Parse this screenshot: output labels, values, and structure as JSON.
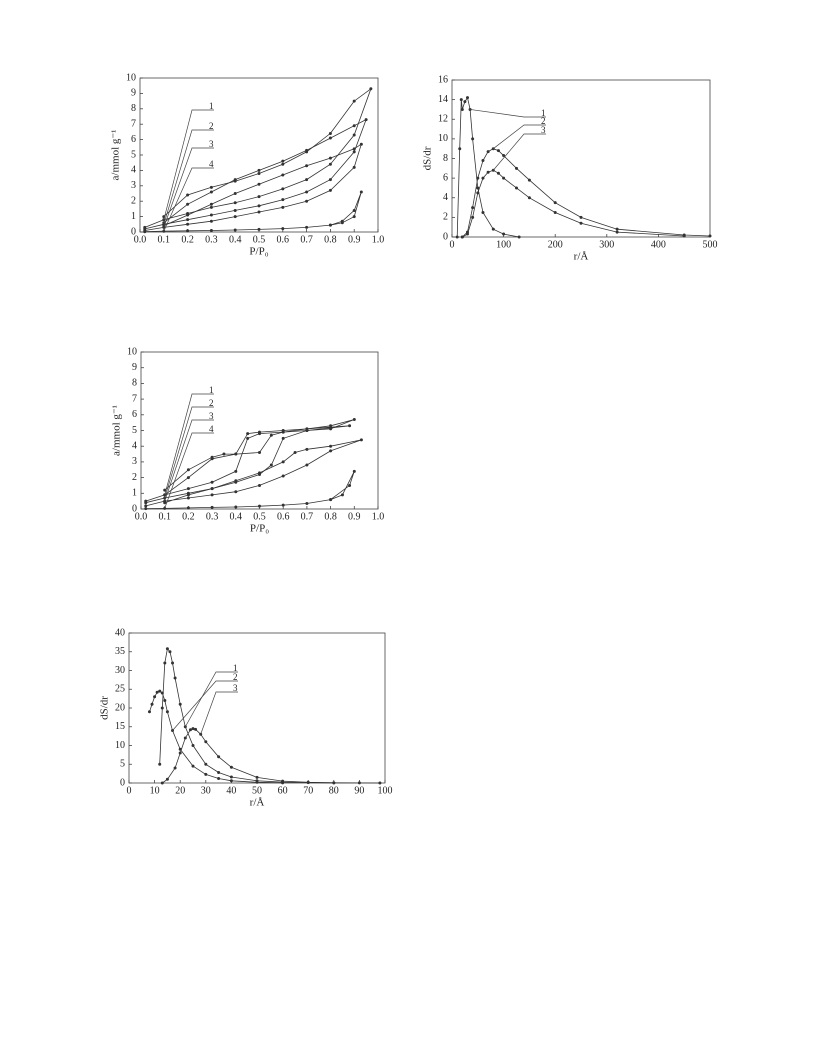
{
  "chart_data": [
    {
      "type": "line",
      "xlabel": "P/P₀",
      "ylabel": "a/mmol g⁻¹",
      "xlim": [
        0,
        1
      ],
      "ylim": [
        0,
        10
      ],
      "xticks": [
        {
          "value": 0,
          "label": "0.0"
        },
        0.1,
        0.2,
        0.3,
        0.4,
        0.5,
        0.6,
        0.7,
        0.8,
        0.9,
        {
          "value": 1,
          "label": "1.0"
        }
      ],
      "yticks": [
        0,
        1,
        2,
        3,
        4,
        5,
        6,
        7,
        8,
        9,
        10
      ],
      "series": [
        {
          "name": "1",
          "color": "#333333",
          "x": [
            0.02,
            0.1,
            0.2,
            0.3,
            0.4,
            0.5,
            0.6,
            0.7,
            0.8,
            0.9,
            0.97,
            0.9,
            0.8,
            0.7,
            0.6,
            0.5,
            0.4,
            0.3,
            0.2,
            0.1
          ],
          "values": [
            0.3,
            0.8,
            1.2,
            1.6,
            1.9,
            2.3,
            2.8,
            3.4,
            4.4,
            6.3,
            9.3,
            8.5,
            6.4,
            5.2,
            4.4,
            3.8,
            3.3,
            2.9,
            2.4,
            1.0
          ]
        },
        {
          "name": "2",
          "color": "#333333",
          "x": [
            0.02,
            0.1,
            0.2,
            0.3,
            0.4,
            0.5,
            0.6,
            0.7,
            0.8,
            0.9,
            0.95,
            0.9,
            0.8,
            0.7,
            0.6,
            0.5,
            0.4,
            0.3,
            0.2,
            0.1
          ],
          "values": [
            0.2,
            0.5,
            0.8,
            1.1,
            1.4,
            1.7,
            2.1,
            2.6,
            3.4,
            5.2,
            7.3,
            6.9,
            6.1,
            5.3,
            4.6,
            4.0,
            3.4,
            2.6,
            1.8,
            0.6
          ]
        },
        {
          "name": "3",
          "color": "#333333",
          "x": [
            0.02,
            0.1,
            0.2,
            0.3,
            0.4,
            0.5,
            0.6,
            0.7,
            0.8,
            0.9,
            0.93,
            0.9,
            0.8,
            0.7,
            0.6,
            0.5,
            0.4,
            0.3,
            0.2,
            0.1
          ],
          "values": [
            0.1,
            0.3,
            0.5,
            0.7,
            1.0,
            1.3,
            1.6,
            2.0,
            2.7,
            4.2,
            5.7,
            5.4,
            4.8,
            4.3,
            3.7,
            3.1,
            2.5,
            1.8,
            1.1,
            0.4
          ]
        },
        {
          "name": "4",
          "color": "#333333",
          "x": [
            0.02,
            0.1,
            0.2,
            0.3,
            0.4,
            0.5,
            0.6,
            0.7,
            0.8,
            0.85,
            0.9,
            0.93,
            0.9,
            0.85,
            0.8
          ],
          "values": [
            0.02,
            0.05,
            0.08,
            0.1,
            0.13,
            0.17,
            0.22,
            0.3,
            0.45,
            0.7,
            1.4,
            2.6,
            1.0,
            0.6,
            0.45
          ]
        }
      ]
    },
    {
      "type": "line",
      "xlabel": "r/Å",
      "ylabel": "dS/dr",
      "xlim": [
        0,
        500
      ],
      "ylim": [
        0,
        16
      ],
      "xticks": [
        0,
        100,
        200,
        300,
        400,
        500
      ],
      "yticks": [
        0,
        2,
        4,
        6,
        8,
        10,
        12,
        14,
        16
      ],
      "series": [
        {
          "name": "1",
          "color": "#333333",
          "x": [
            10,
            15,
            18,
            20,
            25,
            30,
            35,
            40,
            50,
            60,
            80,
            100,
            130
          ],
          "values": [
            0,
            9,
            14,
            13,
            13.8,
            14.2,
            13,
            10,
            5,
            2.5,
            0.8,
            0.3,
            0
          ]
        },
        {
          "name": "2",
          "color": "#333333",
          "x": [
            20,
            30,
            40,
            50,
            60,
            70,
            80,
            90,
            100,
            125,
            150,
            200,
            250,
            320,
            450,
            500
          ],
          "values": [
            0,
            0.5,
            3,
            6,
            7.8,
            8.7,
            9.0,
            8.8,
            8.3,
            7,
            5.8,
            3.5,
            2,
            0.8,
            0.2,
            0.1
          ]
        },
        {
          "name": "3",
          "color": "#333333",
          "x": [
            20,
            30,
            40,
            50,
            60,
            70,
            80,
            90,
            100,
            125,
            150,
            200,
            250,
            320,
            450
          ],
          "values": [
            0,
            0.3,
            2,
            4.5,
            6,
            6.6,
            6.8,
            6.5,
            6,
            5,
            4,
            2.5,
            1.4,
            0.5,
            0.1
          ]
        }
      ]
    },
    {
      "type": "line",
      "xlabel": "P/P₀",
      "ylabel": "a/mmol g⁻¹",
      "xlim": [
        0,
        1
      ],
      "ylim": [
        0,
        10
      ],
      "xticks": [
        {
          "value": 0,
          "label": "0.0"
        },
        0.1,
        0.2,
        0.3,
        0.4,
        0.5,
        0.6,
        0.7,
        0.8,
        0.9,
        {
          "value": 1,
          "label": "1.0"
        }
      ],
      "yticks": [
        0,
        1,
        2,
        3,
        4,
        5,
        6,
        7,
        8,
        9,
        10
      ],
      "series": [
        {
          "name": "1",
          "color": "#333333",
          "x": [
            0.02,
            0.1,
            0.2,
            0.3,
            0.4,
            0.45,
            0.5,
            0.6,
            0.7,
            0.8,
            0.9,
            0.8,
            0.7,
            0.6,
            0.5,
            0.45,
            0.4,
            0.35,
            0.3,
            0.2,
            0.1
          ],
          "values": [
            0.5,
            0.9,
            1.3,
            1.7,
            2.4,
            4.5,
            4.8,
            4.9,
            5.0,
            5.1,
            5.7,
            5.3,
            5.1,
            5.0,
            4.9,
            4.8,
            3.5,
            3.5,
            3.3,
            2.5,
            1.2
          ]
        },
        {
          "name": "2",
          "color": "#333333",
          "x": [
            0.02,
            0.1,
            0.2,
            0.3,
            0.4,
            0.5,
            0.55,
            0.6,
            0.7,
            0.88,
            0.7,
            0.6,
            0.55,
            0.5,
            0.4,
            0.3,
            0.2,
            0.1
          ],
          "values": [
            0.4,
            0.7,
            1.0,
            1.3,
            1.7,
            2.2,
            2.8,
            4.5,
            5.0,
            5.3,
            5.1,
            4.9,
            4.7,
            3.6,
            3.5,
            3.2,
            2.0,
            0.9
          ]
        },
        {
          "name": "3",
          "color": "#333333",
          "x": [
            0.02,
            0.1,
            0.2,
            0.3,
            0.4,
            0.5,
            0.6,
            0.7,
            0.8,
            0.93,
            0.8,
            0.7,
            0.65,
            0.6,
            0.5,
            0.4,
            0.3,
            0.2,
            0.1
          ],
          "values": [
            0.2,
            0.5,
            0.7,
            0.9,
            1.1,
            1.5,
            2.1,
            2.8,
            3.7,
            4.4,
            4.0,
            3.8,
            3.6,
            3.0,
            2.3,
            1.8,
            1.3,
            0.9,
            0.4
          ]
        },
        {
          "name": "4",
          "color": "#333333",
          "x": [
            0.02,
            0.1,
            0.2,
            0.3,
            0.4,
            0.5,
            0.6,
            0.7,
            0.8,
            0.85,
            0.9,
            0.88,
            0.8
          ],
          "values": [
            0.02,
            0.04,
            0.07,
            0.1,
            0.13,
            0.18,
            0.25,
            0.35,
            0.6,
            0.9,
            2.4,
            1.5,
            0.6
          ]
        }
      ]
    },
    {
      "type": "line",
      "xlabel": "r/Å",
      "ylabel": "dS/dr",
      "xlim": [
        0,
        100
      ],
      "ylim": [
        0,
        40
      ],
      "xticks": [
        0,
        10,
        20,
        30,
        40,
        50,
        60,
        70,
        80,
        90,
        100
      ],
      "yticks": [
        0,
        5,
        10,
        15,
        20,
        25,
        30,
        35,
        40
      ],
      "series": [
        {
          "name": "1",
          "color": "#333333",
          "x": [
            12,
            13,
            14,
            15,
            16,
            17,
            18,
            20,
            22,
            25,
            30,
            35,
            40,
            50,
            60,
            70,
            80,
            90,
            98
          ],
          "values": [
            5,
            20,
            32,
            35.8,
            35,
            32,
            28,
            21,
            15,
            10,
            5,
            2.8,
            1.6,
            0.6,
            0.25,
            0.1,
            0.05,
            0.02,
            0
          ]
        },
        {
          "name": "2",
          "color": "#333333",
          "x": [
            8,
            9,
            10,
            11,
            12,
            13,
            14,
            15,
            17,
            20,
            25,
            30,
            35,
            40,
            50,
            60
          ],
          "values": [
            19,
            21,
            23,
            24.2,
            24.5,
            24,
            22,
            19,
            14,
            9,
            4.5,
            2.3,
            1.2,
            0.6,
            0.2,
            0.05
          ]
        },
        {
          "name": "3",
          "color": "#333333",
          "x": [
            13,
            15,
            18,
            20,
            22,
            24,
            25,
            26,
            28,
            30,
            35,
            40,
            50,
            60,
            70,
            80
          ],
          "values": [
            0,
            1,
            4,
            8,
            12,
            14.2,
            14.5,
            14.3,
            13,
            11,
            7,
            4.2,
            1.5,
            0.5,
            0.2,
            0.05
          ]
        }
      ]
    }
  ]
}
